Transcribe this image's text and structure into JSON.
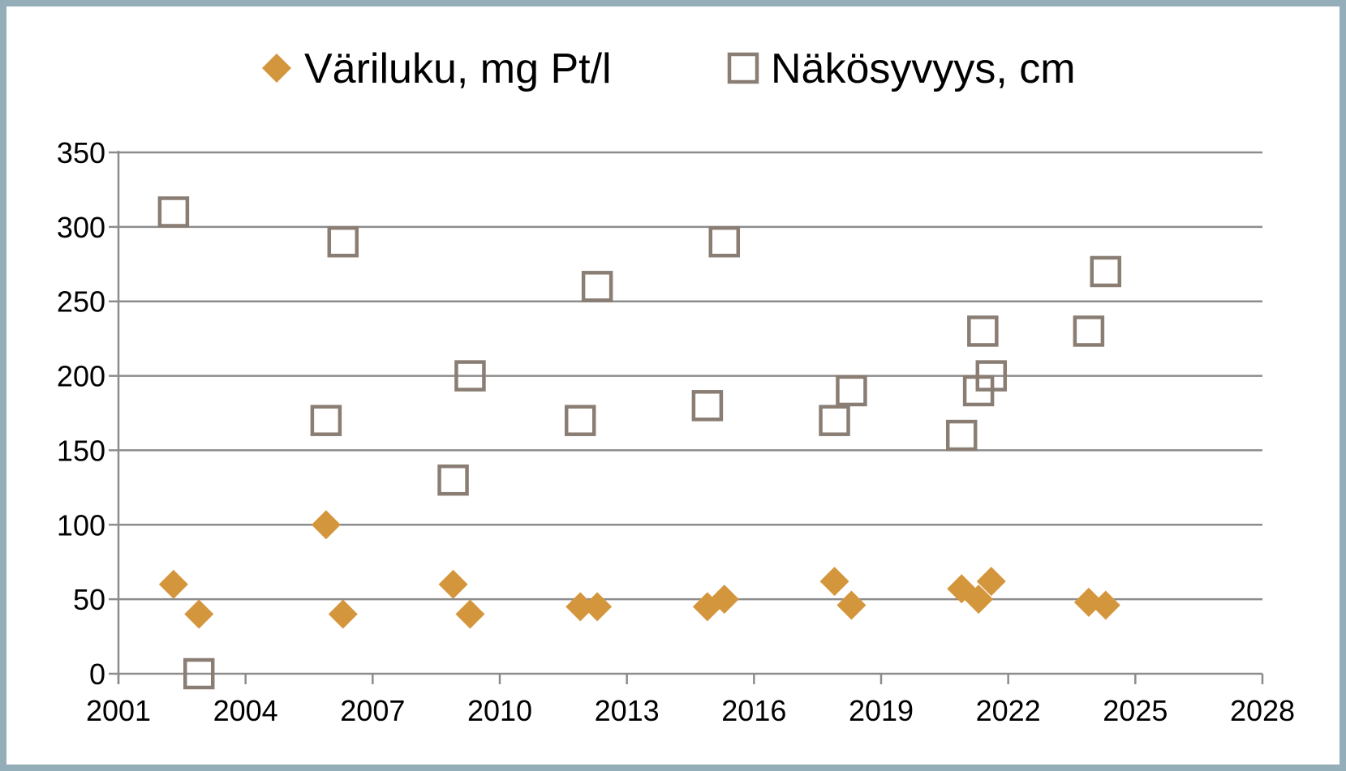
{
  "chart_data": {
    "type": "scatter",
    "title": "",
    "xlabel": "",
    "ylabel": "",
    "xlim": [
      2001,
      2028
    ],
    "ylim": [
      0,
      350
    ],
    "xticks": [
      2001,
      2004,
      2007,
      2010,
      2013,
      2016,
      2019,
      2022,
      2025,
      2028
    ],
    "yticks": [
      0,
      50,
      100,
      150,
      200,
      250,
      300,
      350
    ],
    "grid": "horizontal",
    "legend_position": "top",
    "series": [
      {
        "name": "Väriluku, mg Pt/l",
        "marker": "diamond",
        "color": "#d4963c",
        "points": [
          {
            "x": 2002.3,
            "y": 60
          },
          {
            "x": 2002.9,
            "y": 40
          },
          {
            "x": 2005.9,
            "y": 100
          },
          {
            "x": 2006.3,
            "y": 40
          },
          {
            "x": 2008.9,
            "y": 60
          },
          {
            "x": 2009.3,
            "y": 40
          },
          {
            "x": 2011.9,
            "y": 45
          },
          {
            "x": 2012.3,
            "y": 45
          },
          {
            "x": 2014.9,
            "y": 45
          },
          {
            "x": 2015.3,
            "y": 50
          },
          {
            "x": 2017.9,
            "y": 62
          },
          {
            "x": 2018.3,
            "y": 46
          },
          {
            "x": 2020.9,
            "y": 57
          },
          {
            "x": 2021.3,
            "y": 50
          },
          {
            "x": 2021.6,
            "y": 62
          },
          {
            "x": 2023.9,
            "y": 48
          },
          {
            "x": 2024.3,
            "y": 46
          }
        ]
      },
      {
        "name": "Näkösyvyys, cm",
        "marker": "square-open",
        "color": "#8a7e74",
        "points": [
          {
            "x": 2002.3,
            "y": 310
          },
          {
            "x": 2002.9,
            "y": 0
          },
          {
            "x": 2005.9,
            "y": 170
          },
          {
            "x": 2006.3,
            "y": 290
          },
          {
            "x": 2008.9,
            "y": 130
          },
          {
            "x": 2009.3,
            "y": 200
          },
          {
            "x": 2011.9,
            "y": 170
          },
          {
            "x": 2012.3,
            "y": 260
          },
          {
            "x": 2014.9,
            "y": 180
          },
          {
            "x": 2015.3,
            "y": 290
          },
          {
            "x": 2017.9,
            "y": 170
          },
          {
            "x": 2018.3,
            "y": 190
          },
          {
            "x": 2020.9,
            "y": 160
          },
          {
            "x": 2021.3,
            "y": 190
          },
          {
            "x": 2021.4,
            "y": 230
          },
          {
            "x": 2021.6,
            "y": 200
          },
          {
            "x": 2023.9,
            "y": 230
          },
          {
            "x": 2024.3,
            "y": 270
          }
        ]
      }
    ]
  },
  "style": {
    "grid_color": "#8c8c8c",
    "axis_color": "#8c8c8c",
    "frame_color": "#93aeb8"
  }
}
